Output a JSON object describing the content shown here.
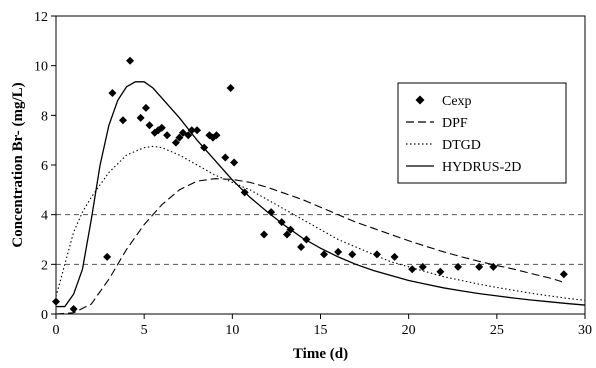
{
  "chart_data": {
    "type": "scatter",
    "title": "",
    "xlabel": "Time (d)",
    "ylabel": "Concentration Br- (mg/L)",
    "xlim": [
      0,
      30
    ],
    "ylim": [
      0,
      12
    ],
    "xticks": [
      "0",
      "5",
      "10",
      "15",
      "20",
      "25",
      "30"
    ],
    "yticks": [
      "0",
      "2",
      "4",
      "6",
      "8",
      "10",
      "12"
    ],
    "reference_lines_y": [
      2,
      4
    ],
    "legend_position": "right",
    "series": [
      {
        "name": "Cexp",
        "kind": "points",
        "marker": "diamond",
        "x": [
          0,
          1,
          2.9,
          3.2,
          3.8,
          4.2,
          4.8,
          5.1,
          5.3,
          5.6,
          5.8,
          6.0,
          6.3,
          6.8,
          7.0,
          7.2,
          7.5,
          7.7,
          8.0,
          8.4,
          8.7,
          8.9,
          9.1,
          9.6,
          9.9,
          10.1,
          10.7,
          11.8,
          12.2,
          12.8,
          13.1,
          13.3,
          13.9,
          14.2,
          15.2,
          16.0,
          16.8,
          18.2,
          19.2,
          20.2,
          20.8,
          21.8,
          22.8,
          24.0,
          24.8,
          28.8
        ],
        "y": [
          0.5,
          0.2,
          2.3,
          8.9,
          7.8,
          10.2,
          7.9,
          8.3,
          7.6,
          7.3,
          7.4,
          7.5,
          7.2,
          6.9,
          7.1,
          7.3,
          7.2,
          7.4,
          7.4,
          6.7,
          7.2,
          7.1,
          7.2,
          6.3,
          9.1,
          6.1,
          4.9,
          3.2,
          4.1,
          3.7,
          3.2,
          3.4,
          2.7,
          3.0,
          2.4,
          2.5,
          2.4,
          2.4,
          2.3,
          1.8,
          1.9,
          1.7,
          1.9,
          1.9,
          1.9,
          1.6
        ]
      },
      {
        "name": "DPF",
        "kind": "line",
        "dash": "8,4",
        "x": [
          0,
          1,
          2,
          3,
          4,
          5,
          6,
          7,
          8,
          9,
          10,
          11,
          12,
          13,
          14,
          15,
          16,
          17,
          18,
          19,
          20,
          21,
          22,
          23,
          24,
          25,
          26,
          27,
          28,
          28.7
        ],
        "y": [
          0,
          0.05,
          0.4,
          1.4,
          2.6,
          3.6,
          4.4,
          5.0,
          5.35,
          5.45,
          5.42,
          5.3,
          5.1,
          4.85,
          4.6,
          4.3,
          4.0,
          3.7,
          3.45,
          3.2,
          2.95,
          2.72,
          2.5,
          2.3,
          2.12,
          1.95,
          1.8,
          1.62,
          1.45,
          1.3
        ]
      },
      {
        "name": "DTGD",
        "kind": "line",
        "dash": "1.5,2.5",
        "x": [
          0,
          0.5,
          1,
          1.5,
          2,
          3,
          4,
          5,
          5.5,
          6,
          7,
          8,
          9,
          10,
          11,
          12,
          13,
          14,
          15,
          16,
          17,
          18,
          19,
          20,
          21,
          22,
          23,
          24,
          25,
          26,
          27,
          28,
          29,
          30
        ],
        "y": [
          0.7,
          2.0,
          3.3,
          4.1,
          4.7,
          5.7,
          6.4,
          6.7,
          6.75,
          6.7,
          6.4,
          6.0,
          5.6,
          5.3,
          5.0,
          4.6,
          4.2,
          3.8,
          3.4,
          3.0,
          2.7,
          2.4,
          2.1,
          1.9,
          1.7,
          1.5,
          1.35,
          1.2,
          1.07,
          0.95,
          0.83,
          0.73,
          0.63,
          0.55
        ]
      },
      {
        "name": "HYDRUS-2D",
        "kind": "line",
        "dash": "",
        "x": [
          0,
          0.5,
          1,
          1.5,
          2,
          2.5,
          3,
          3.5,
          4,
          4.5,
          5,
          5.5,
          6,
          7,
          8,
          9,
          10,
          11,
          12,
          13,
          14,
          15,
          16,
          17,
          18,
          19,
          20,
          21,
          22,
          23,
          24,
          25,
          26,
          27,
          28,
          29,
          30
        ],
        "y": [
          0.3,
          0.3,
          0.8,
          1.8,
          3.8,
          6.0,
          7.6,
          8.6,
          9.15,
          9.35,
          9.35,
          9.1,
          8.7,
          7.9,
          7.0,
          6.2,
          5.4,
          4.7,
          4.1,
          3.55,
          3.05,
          2.65,
          2.3,
          2.0,
          1.75,
          1.55,
          1.35,
          1.2,
          1.05,
          0.93,
          0.82,
          0.73,
          0.64,
          0.56,
          0.49,
          0.42,
          0.36
        ]
      }
    ]
  }
}
